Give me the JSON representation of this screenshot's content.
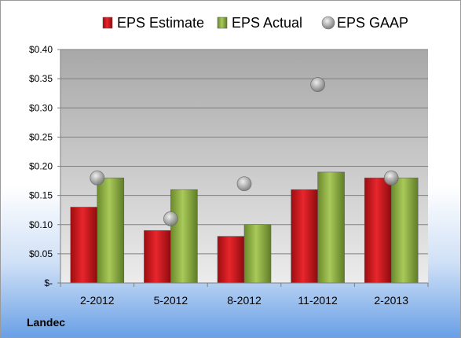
{
  "chart_data": {
    "type": "bar",
    "categories": [
      "2-2012",
      "5-2012",
      "8-2012",
      "11-2012",
      "2-2013"
    ],
    "series": [
      {
        "name": "EPS Estimate",
        "kind": "bar",
        "color": "#c8141a",
        "values": [
          0.13,
          0.09,
          0.08,
          0.16,
          0.18
        ]
      },
      {
        "name": "EPS Actual",
        "kind": "bar",
        "color": "#8fb044",
        "values": [
          0.18,
          0.16,
          0.1,
          0.19,
          0.18
        ]
      },
      {
        "name": "EPS GAAP",
        "kind": "marker",
        "color": "#a6a6a6",
        "values": [
          0.18,
          0.11,
          0.17,
          0.34,
          0.18
        ]
      }
    ],
    "yticks": [
      0,
      0.05,
      0.1,
      0.15,
      0.2,
      0.25,
      0.3,
      0.35,
      0.4
    ],
    "ytick_labels": [
      "$-",
      "$0.05",
      "$0.10",
      "$0.15",
      "$0.20",
      "$0.25",
      "$0.30",
      "$0.35",
      "$0.40"
    ],
    "ylim": [
      0,
      0.4
    ],
    "grid": true,
    "legend_position": "top"
  },
  "footer": {
    "company": "Landec"
  }
}
